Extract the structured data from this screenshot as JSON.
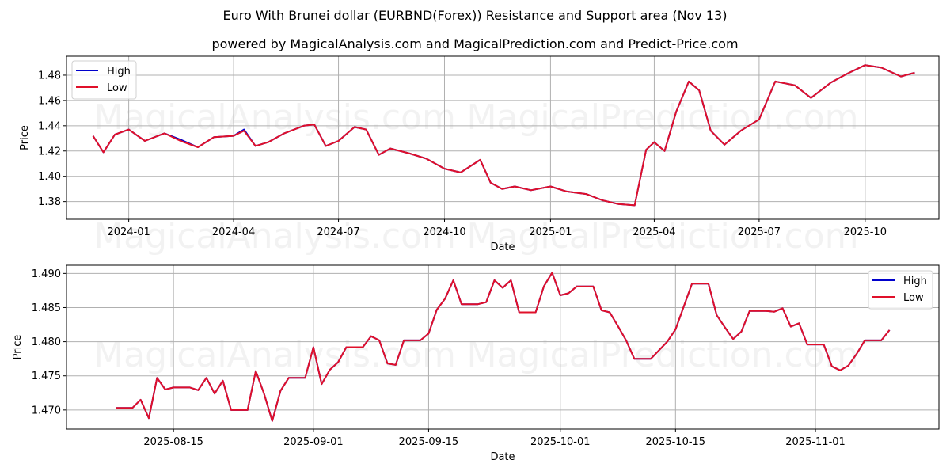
{
  "header": {
    "title": "Euro With Brunei dollar (EURBND(Forex)) Resistance and Support area (Nov 13)",
    "subtitle": "powered by MagicalAnalysis.com and MagicalPrediction.com and Predict-Price.com"
  },
  "watermarks": [
    "MagicalAnalysis.com",
    "MagicalPrediction.com"
  ],
  "colors": {
    "high": "#0000cc",
    "low": "#e0102a",
    "grid": "#b0b0b0"
  },
  "chart_data": [
    {
      "type": "line",
      "title": "",
      "xlabel": "Date",
      "ylabel": "Price",
      "ylim": [
        1.366,
        1.495
      ],
      "grid": true,
      "legend": {
        "position": "upper left",
        "entries": [
          "High",
          "Low"
        ]
      },
      "x_ticks": [
        "2024-01",
        "2024-04",
        "2024-07",
        "2024-10",
        "2025-01",
        "2025-04",
        "2025-07",
        "2025-10"
      ],
      "y_ticks": [
        "1.38",
        "1.40",
        "1.42",
        "1.44",
        "1.46",
        "1.48"
      ],
      "x": [
        "2023-12-01",
        "2023-12-10",
        "2023-12-20",
        "2024-01-01",
        "2024-01-15",
        "2024-02-01",
        "2024-02-15",
        "2024-03-01",
        "2024-03-15",
        "2024-04-01",
        "2024-04-10",
        "2024-04-20",
        "2024-05-01",
        "2024-05-15",
        "2024-06-01",
        "2024-06-10",
        "2024-06-20",
        "2024-07-01",
        "2024-07-15",
        "2024-07-25",
        "2024-08-05",
        "2024-08-15",
        "2024-09-01",
        "2024-09-15",
        "2024-10-01",
        "2024-10-15",
        "2024-11-01",
        "2024-11-10",
        "2024-11-20",
        "2024-12-01",
        "2024-12-15",
        "2025-01-01",
        "2025-01-15",
        "2025-02-01",
        "2025-02-15",
        "2025-03-01",
        "2025-03-15",
        "2025-03-25",
        "2025-04-01",
        "2025-04-10",
        "2025-04-20",
        "2025-05-01",
        "2025-05-10",
        "2025-05-20",
        "2025-06-01",
        "2025-06-15",
        "2025-07-01",
        "2025-07-15",
        "2025-08-01",
        "2025-08-15",
        "2025-09-01",
        "2025-09-15",
        "2025-10-01",
        "2025-10-15",
        "2025-11-01",
        "2025-11-13"
      ],
      "series": [
        {
          "name": "High",
          "values": [
            1.432,
            1.419,
            1.433,
            1.437,
            1.428,
            1.434,
            1.429,
            1.423,
            1.431,
            1.432,
            1.437,
            1.424,
            1.427,
            1.434,
            1.44,
            1.441,
            1.424,
            1.428,
            1.439,
            1.437,
            1.417,
            1.422,
            1.418,
            1.414,
            1.406,
            1.403,
            1.413,
            1.395,
            1.39,
            1.392,
            1.389,
            1.392,
            1.388,
            1.386,
            1.381,
            1.378,
            1.377,
            1.421,
            1.427,
            1.42,
            1.451,
            1.475,
            1.468,
            1.436,
            1.425,
            1.436,
            1.445,
            1.475,
            1.472,
            1.462,
            1.474,
            1.481,
            1.488,
            1.486,
            1.479,
            1.482
          ]
        },
        {
          "name": "Low",
          "values": [
            1.432,
            1.419,
            1.433,
            1.437,
            1.428,
            1.434,
            1.428,
            1.423,
            1.431,
            1.432,
            1.436,
            1.424,
            1.427,
            1.434,
            1.44,
            1.441,
            1.424,
            1.428,
            1.439,
            1.437,
            1.417,
            1.422,
            1.418,
            1.414,
            1.406,
            1.403,
            1.413,
            1.395,
            1.39,
            1.392,
            1.389,
            1.392,
            1.388,
            1.386,
            1.381,
            1.378,
            1.377,
            1.421,
            1.427,
            1.42,
            1.451,
            1.475,
            1.468,
            1.436,
            1.425,
            1.436,
            1.445,
            1.475,
            1.472,
            1.462,
            1.474,
            1.481,
            1.488,
            1.486,
            1.479,
            1.482
          ]
        }
      ]
    },
    {
      "type": "line",
      "title": "",
      "xlabel": "Date",
      "ylabel": "Price",
      "ylim": [
        1.4672,
        1.4912
      ],
      "grid": true,
      "legend": {
        "position": "upper right",
        "entries": [
          "High",
          "Low"
        ]
      },
      "x_ticks": [
        "2025-08-15",
        "2025-09-01",
        "2025-09-15",
        "2025-10-01",
        "2025-10-15",
        "2025-11-01"
      ],
      "y_ticks": [
        "1.470",
        "1.475",
        "1.480",
        "1.485",
        "1.490"
      ],
      "x": [
        "2025-08-08",
        "2025-08-10",
        "2025-08-11",
        "2025-08-12",
        "2025-08-13",
        "2025-08-14",
        "2025-08-15",
        "2025-08-17",
        "2025-08-18",
        "2025-08-19",
        "2025-08-20",
        "2025-08-21",
        "2025-08-22",
        "2025-08-24",
        "2025-08-25",
        "2025-08-26",
        "2025-08-27",
        "2025-08-28",
        "2025-08-29",
        "2025-08-31",
        "2025-09-01",
        "2025-09-02",
        "2025-09-03",
        "2025-09-04",
        "2025-09-05",
        "2025-09-07",
        "2025-09-08",
        "2025-09-09",
        "2025-09-10",
        "2025-09-11",
        "2025-09-12",
        "2025-09-14",
        "2025-09-15",
        "2025-09-16",
        "2025-09-17",
        "2025-09-18",
        "2025-09-19",
        "2025-09-21",
        "2025-09-22",
        "2025-09-23",
        "2025-09-24",
        "2025-09-25",
        "2025-09-26",
        "2025-09-28",
        "2025-09-29",
        "2025-09-30",
        "2025-10-01",
        "2025-10-02",
        "2025-10-03",
        "2025-10-05",
        "2025-10-06",
        "2025-10-07",
        "2025-10-08",
        "2025-10-09",
        "2025-10-10",
        "2025-10-12",
        "2025-10-14",
        "2025-10-15",
        "2025-10-17",
        "2025-10-19",
        "2025-10-20",
        "2025-10-21",
        "2025-10-22",
        "2025-10-23",
        "2025-10-24",
        "2025-10-26",
        "2025-10-27",
        "2025-10-28",
        "2025-10-29",
        "2025-10-30",
        "2025-10-31",
        "2025-11-02",
        "2025-11-03",
        "2025-11-04",
        "2025-11-05",
        "2025-11-06",
        "2025-11-07",
        "2025-11-09",
        "2025-11-10"
      ],
      "series": [
        {
          "name": "High",
          "values": [
            1.4703,
            1.4703,
            1.4715,
            1.4688,
            1.4747,
            1.473,
            1.4733,
            1.4733,
            1.4729,
            1.4747,
            1.4724,
            1.4743,
            1.47,
            1.47,
            1.4757,
            1.4724,
            1.4684,
            1.4728,
            1.4747,
            1.4747,
            1.4792,
            1.4738,
            1.4759,
            1.477,
            1.4792,
            1.4792,
            1.4808,
            1.4802,
            1.4768,
            1.4766,
            1.4802,
            1.4802,
            1.4812,
            1.4847,
            1.4863,
            1.489,
            1.4855,
            1.4855,
            1.4858,
            1.489,
            1.4879,
            1.489,
            1.4843,
            1.4843,
            1.4881,
            1.4901,
            1.4868,
            1.4871,
            1.4881,
            1.4881,
            1.4846,
            1.4843,
            1.4823,
            1.4802,
            1.4775,
            1.4775,
            1.48,
            1.4818,
            1.4885,
            1.4885,
            1.4839,
            1.4821,
            1.4804,
            1.4815,
            1.4845,
            1.4845,
            1.4844,
            1.4849,
            1.4822,
            1.4827,
            1.4796,
            1.4796,
            1.4764,
            1.4758,
            1.4765,
            1.4782,
            1.4802,
            1.4802,
            1.4817
          ]
        },
        {
          "name": "Low",
          "values": [
            1.4703,
            1.4703,
            1.4715,
            1.4688,
            1.4747,
            1.473,
            1.4733,
            1.4733,
            1.4729,
            1.4747,
            1.4724,
            1.4743,
            1.47,
            1.47,
            1.4757,
            1.4724,
            1.4684,
            1.4728,
            1.4747,
            1.4747,
            1.4792,
            1.4738,
            1.4759,
            1.477,
            1.4792,
            1.4792,
            1.4808,
            1.4802,
            1.4768,
            1.4766,
            1.4802,
            1.4802,
            1.4812,
            1.4847,
            1.4863,
            1.489,
            1.4855,
            1.4855,
            1.4858,
            1.489,
            1.4879,
            1.489,
            1.4843,
            1.4843,
            1.4881,
            1.4901,
            1.4868,
            1.4871,
            1.4881,
            1.4881,
            1.4846,
            1.4843,
            1.4823,
            1.4802,
            1.4775,
            1.4775,
            1.48,
            1.4818,
            1.4885,
            1.4885,
            1.4839,
            1.4821,
            1.4804,
            1.4815,
            1.4845,
            1.4845,
            1.4844,
            1.4849,
            1.4822,
            1.4827,
            1.4796,
            1.4796,
            1.4764,
            1.4758,
            1.4765,
            1.4782,
            1.4802,
            1.4802,
            1.4817
          ]
        }
      ]
    }
  ]
}
